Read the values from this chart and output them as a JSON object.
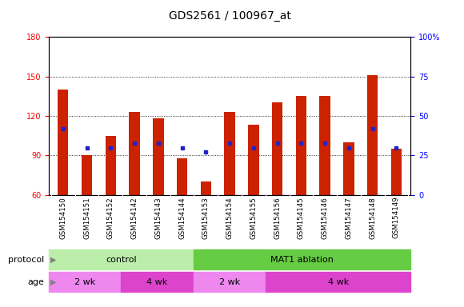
{
  "title": "GDS2561 / 100967_at",
  "samples": [
    "GSM154150",
    "GSM154151",
    "GSM154152",
    "GSM154142",
    "GSM154143",
    "GSM154144",
    "GSM154153",
    "GSM154154",
    "GSM154155",
    "GSM154156",
    "GSM154145",
    "GSM154146",
    "GSM154147",
    "GSM154148",
    "GSM154149"
  ],
  "counts": [
    140,
    90,
    105,
    123,
    118,
    88,
    70,
    123,
    113,
    130,
    135,
    135,
    100,
    151,
    95
  ],
  "percentile_ranks_pct": [
    42,
    30,
    30,
    33,
    33,
    30,
    27,
    33,
    30,
    33,
    33,
    33,
    30,
    42,
    30
  ],
  "ylim": [
    60,
    180
  ],
  "yticks_left": [
    60,
    90,
    120,
    150,
    180
  ],
  "yticks_right": [
    0,
    25,
    50,
    75,
    100
  ],
  "ylim_right": [
    0,
    100
  ],
  "bar_color": "#cc2200",
  "dot_color": "#2222cc",
  "bar_bottom": 60,
  "control_color_light": "#bbeeaa",
  "control_color_dark": "#66cc44",
  "age_color_light": "#ee88ee",
  "age_color_dark": "#dd44cc",
  "xlabel_area_color": "#cccccc",
  "title_fontsize": 10,
  "tick_fontsize": 7,
  "anno_fontsize": 8
}
